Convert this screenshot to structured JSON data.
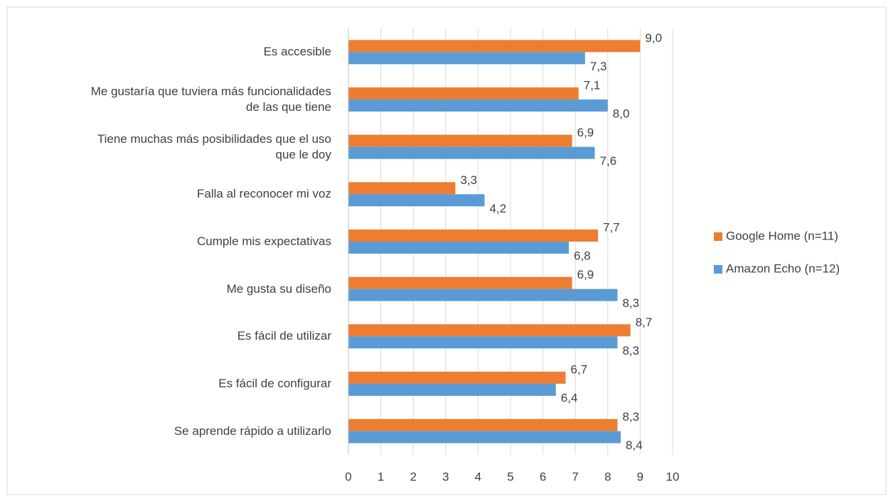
{
  "chart_data": {
    "type": "bar",
    "orientation": "horizontal",
    "categories": [
      "Es accesible",
      "Me gustaría que tuviera más funcionalidades de las que tiene",
      "Tiene muchas más posibilidades que el uso que le doy",
      "Falla al reconocer mi voz",
      "Cumple mis expectativas",
      "Me gusta su diseño",
      "Es fácil de utilizar",
      "Es fácil de configurar",
      "Se aprende rápido a utilizarlo"
    ],
    "series": [
      {
        "name": "Google Home (n=11)",
        "color": "#ed7d31",
        "values": [
          9.0,
          7.1,
          6.9,
          3.3,
          7.7,
          6.9,
          8.7,
          6.7,
          8.3
        ],
        "value_labels": [
          "9,0",
          "7,1",
          "6,9",
          "3,3",
          "7,7",
          "6,9",
          "8,7",
          "6,7",
          "8,3"
        ]
      },
      {
        "name": "Amazon Echo (n=12)",
        "color": "#5b9bd5",
        "values": [
          7.3,
          8.0,
          7.6,
          4.2,
          6.8,
          8.3,
          8.3,
          6.4,
          8.4
        ],
        "value_labels": [
          "7,3",
          "8,0",
          "7,6",
          "4,2",
          "6,8",
          "8,3",
          "8,3",
          "6,4",
          "8,4"
        ]
      }
    ],
    "xlim": [
      0,
      10
    ],
    "xticks": [
      0,
      1,
      2,
      3,
      4,
      5,
      6,
      7,
      8,
      9,
      10
    ],
    "grid": true,
    "legend": "right"
  }
}
